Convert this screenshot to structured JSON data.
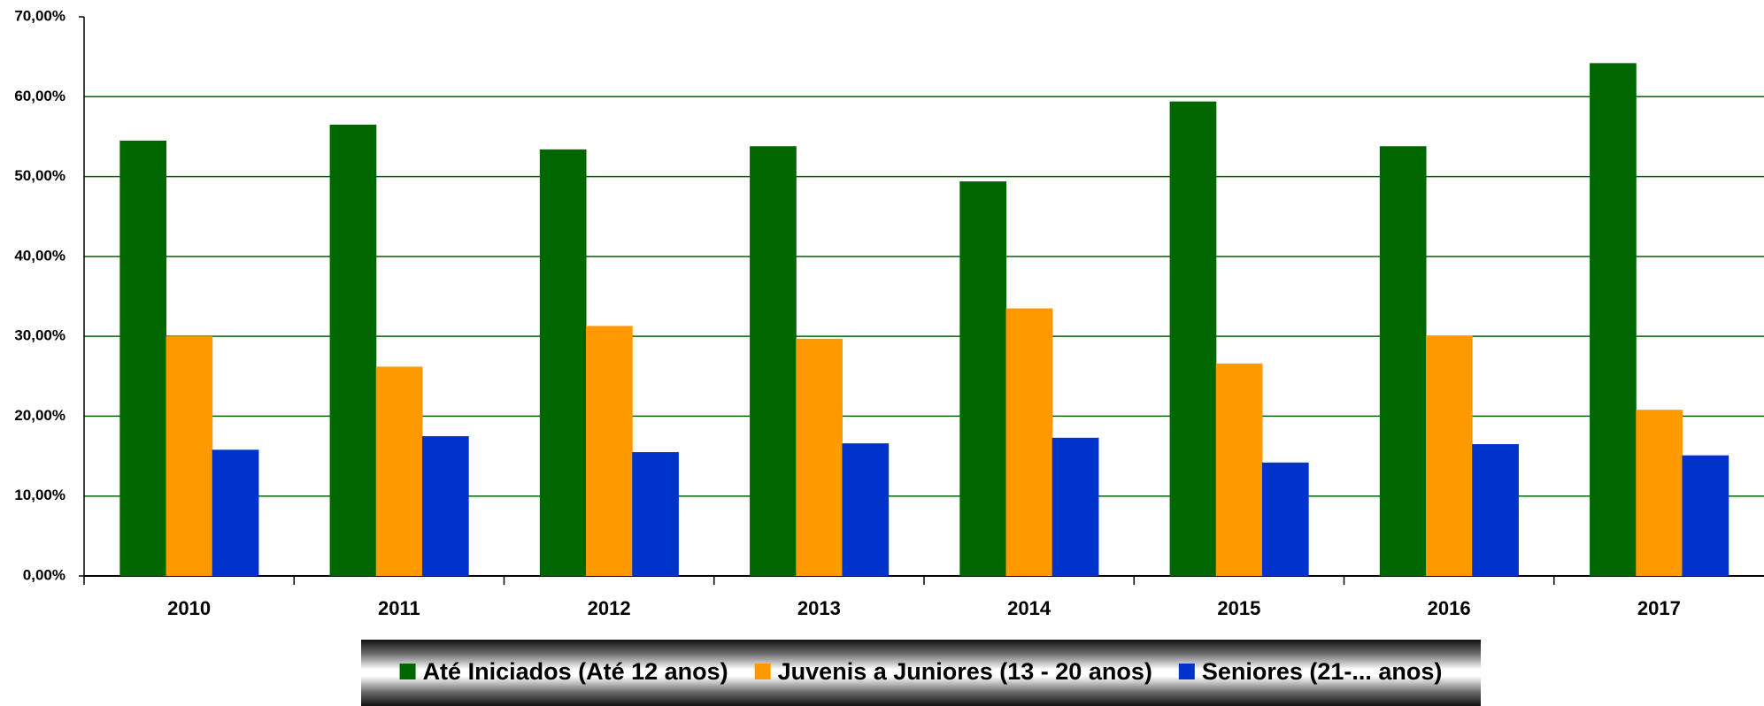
{
  "chart_data": {
    "type": "bar",
    "categories": [
      "2010",
      "2011",
      "2012",
      "2013",
      "2014",
      "2015",
      "2016",
      "2017"
    ],
    "series": [
      {
        "name": "Até Iniciados (Até 12 anos)",
        "color": "#006600",
        "values": [
          54.5,
          56.5,
          53.4,
          53.8,
          49.4,
          59.4,
          53.8,
          64.2
        ]
      },
      {
        "name": "Juvenis a Juniores (13 - 20 anos)",
        "color": "#ff9900",
        "values": [
          30.0,
          26.2,
          31.3,
          29.7,
          33.5,
          26.6,
          30.1,
          20.8
        ]
      },
      {
        "name": "Seniores (21-... anos)",
        "color": "#0033cc",
        "values": [
          15.8,
          17.5,
          15.5,
          16.6,
          17.3,
          14.2,
          16.5,
          15.1
        ]
      }
    ],
    "ylim": [
      0,
      70
    ],
    "yticks": [
      {
        "value": 0,
        "label": "0,00%"
      },
      {
        "value": 10,
        "label": "10,00%"
      },
      {
        "value": 20,
        "label": "20,00%"
      },
      {
        "value": 30,
        "label": "30,00%"
      },
      {
        "value": 40,
        "label": "40,00%"
      },
      {
        "value": 50,
        "label": "50,00%"
      },
      {
        "value": 60,
        "label": "60,00%"
      },
      {
        "value": 70,
        "label": "70,00%"
      }
    ],
    "grid": true,
    "grid_color": "#006600",
    "legend": "bottom"
  }
}
